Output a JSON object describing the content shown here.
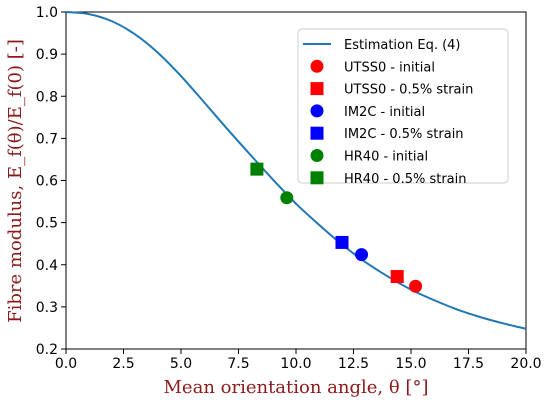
{
  "chart_data": {
    "type": "scatter",
    "xlabel": "Mean orientation angle, θ [°]",
    "ylabel": "Fibre modulus, E_f(θ)/E_f(0) [-]",
    "xlim": [
      0,
      20
    ],
    "ylim": [
      0.2,
      1.0
    ],
    "x_ticks": [
      "0.0",
      "2.5",
      "5.0",
      "7.5",
      "10.0",
      "12.5",
      "15.0",
      "17.5",
      "20.0"
    ],
    "y_ticks": [
      "0.2",
      "0.3",
      "0.4",
      "0.5",
      "0.6",
      "0.7",
      "0.8",
      "0.9",
      "1.0"
    ],
    "grid": false,
    "legend_position": "top-right",
    "series": [
      {
        "name": "Estimation Eq. (4)",
        "kind": "line",
        "color": "#1f77b4",
        "x": [
          0,
          1,
          2,
          3,
          4,
          5,
          6,
          7,
          8,
          9,
          10,
          11,
          12,
          13,
          14,
          15,
          16,
          17,
          18,
          19,
          20
        ],
        "y": [
          1.0,
          0.995,
          0.978,
          0.947,
          0.903,
          0.848,
          0.786,
          0.723,
          0.662,
          0.602,
          0.545,
          0.495,
          0.448,
          0.407,
          0.372,
          0.341,
          0.316,
          0.294,
          0.276,
          0.261,
          0.248
        ]
      },
      {
        "name": "UTSS0 - initial",
        "kind": "point",
        "marker": "circle",
        "color": "#ff0000",
        "x": [
          15.2
        ],
        "y": [
          0.349
        ]
      },
      {
        "name": "UTSS0 - 0.5% strain",
        "kind": "point",
        "marker": "square",
        "color": "#ff0000",
        "x": [
          14.4
        ],
        "y": [
          0.372
        ]
      },
      {
        "name": "IM2C - initial",
        "kind": "point",
        "marker": "circle",
        "color": "#0000ff",
        "x": [
          12.85
        ],
        "y": [
          0.424
        ]
      },
      {
        "name": "IM2C - 0.5% strain",
        "kind": "point",
        "marker": "square",
        "color": "#0000ff",
        "x": [
          12.0
        ],
        "y": [
          0.453
        ]
      },
      {
        "name": "HR40 - initial",
        "kind": "point",
        "marker": "circle",
        "color": "#008000",
        "x": [
          9.6
        ],
        "y": [
          0.559
        ]
      },
      {
        "name": "HR40 - 0.5% strain",
        "kind": "point",
        "marker": "square",
        "color": "#008000",
        "x": [
          8.3
        ],
        "y": [
          0.627
        ]
      }
    ]
  }
}
